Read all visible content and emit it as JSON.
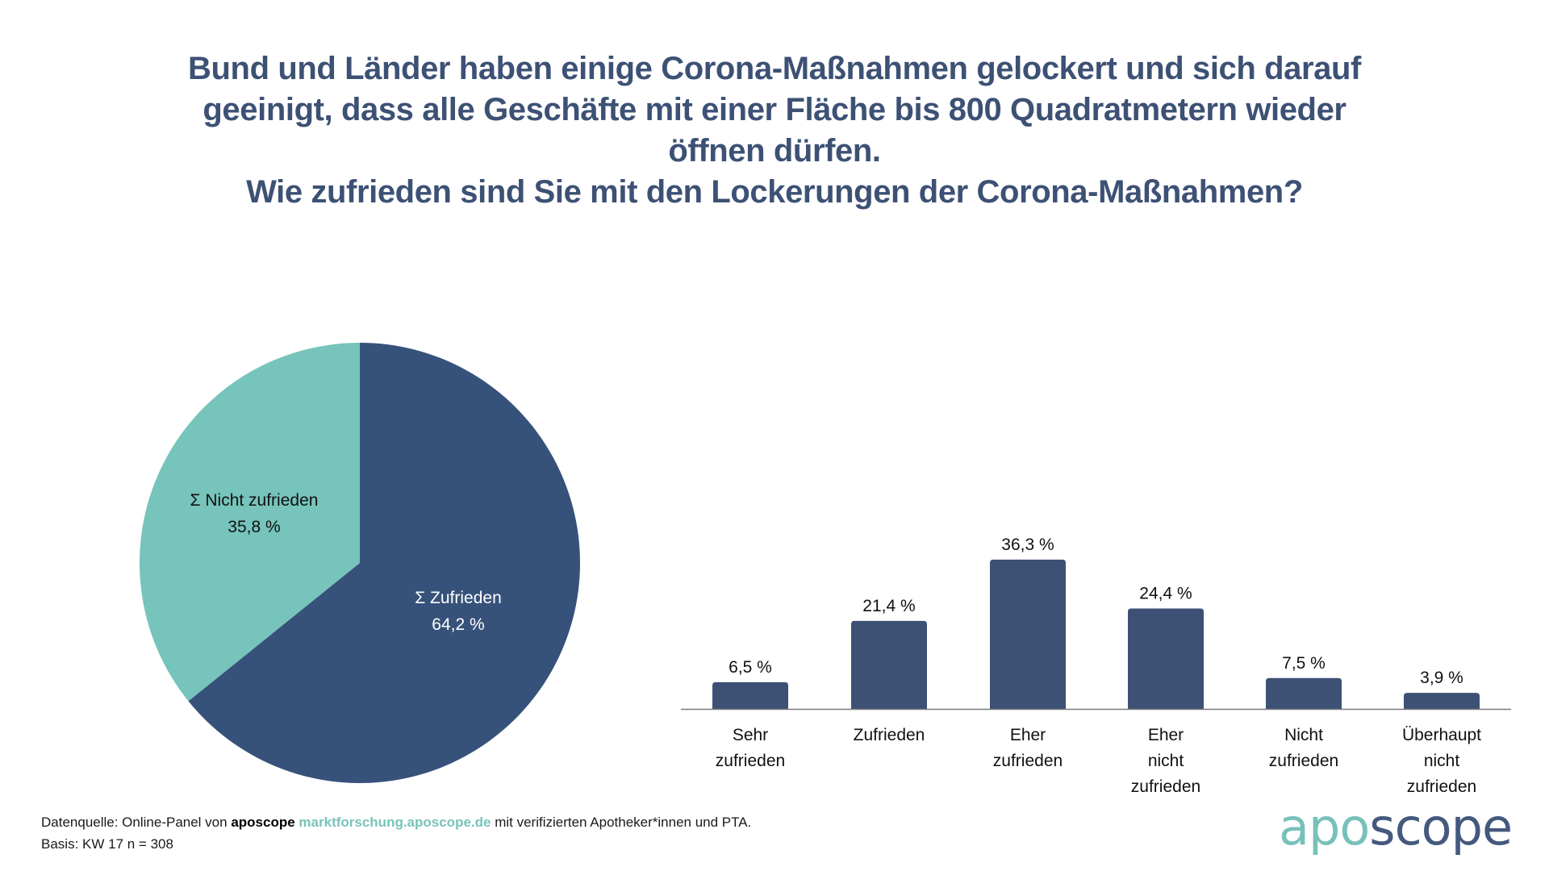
{
  "title": {
    "lines": [
      "Bund und Länder haben einige Corona-Maßnahmen gelockert und sich darauf",
      "geeinigt, dass alle Geschäfte mit einer Fläche bis 800 Quadratmetern wieder",
      "öffnen dürfen.",
      "Wie zufrieden sind Sie mit den Lockerungen der Corona-Maßnahmen?"
    ]
  },
  "colors": {
    "navy": "#37527a",
    "bar": "#3d5175",
    "teal": "#76c4bb",
    "title": "#3d5175",
    "axis": "#7a7a7a"
  },
  "chart_data": [
    {
      "type": "pie",
      "slices": [
        {
          "label": "Σ Zufrieden",
          "value": 64.2,
          "value_label": "64,2 %",
          "color": "#37527a",
          "text_color": "#ffffff"
        },
        {
          "label": "Σ Nicht zufrieden",
          "value": 35.8,
          "value_label": "35,8 %",
          "color": "#76c4bb",
          "text_color": "#111111"
        }
      ],
      "start": "12 o'clock, clockwise"
    },
    {
      "type": "bar",
      "categories": [
        [
          "Sehr",
          "zufrieden"
        ],
        [
          "Zufrieden"
        ],
        [
          "Eher",
          "zufrieden"
        ],
        [
          "Eher",
          "nicht",
          "zufrieden"
        ],
        [
          "Nicht",
          "zufrieden"
        ],
        [
          "Überhaupt",
          "nicht",
          "zufrieden"
        ]
      ],
      "values": [
        6.5,
        21.4,
        36.3,
        24.4,
        7.5,
        3.9
      ],
      "value_labels": [
        "6,5 %",
        "21,4 %",
        "36,3 %",
        "24,4 %",
        "7,5 %",
        "3,9 %"
      ],
      "ylim": [
        0,
        40
      ],
      "grid": false,
      "legend": "none"
    }
  ],
  "footer": {
    "source_prefix": "Datenquelle: Online-Panel von ",
    "source_brand": "aposcope",
    "source_link": "marktforschung.aposcope.de",
    "source_suffix": " mit verifizierten Apotheker*innen und PTA.",
    "basis": "Basis: KW 17 n = 308"
  },
  "logo": {
    "part1": "apo",
    "part2": "scope"
  }
}
